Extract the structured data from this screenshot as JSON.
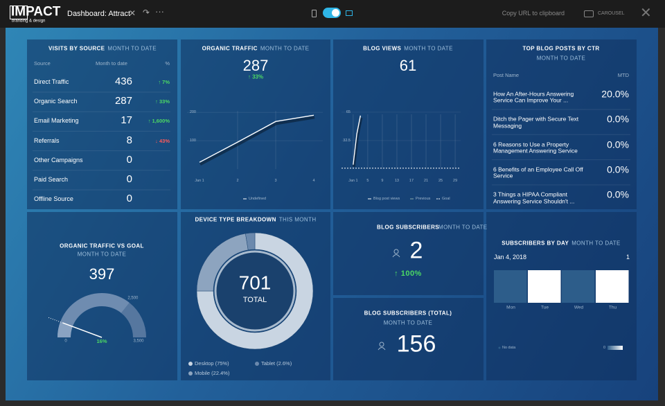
{
  "header": {
    "logo": "IMPACT",
    "logo_tagline": "branding & design",
    "title": "Dashboard: Attract",
    "copy_url": "Copy URL to clipboard",
    "carousel": "CAROUSEL"
  },
  "visits_by_source": {
    "title": "VISITS BY SOURCE",
    "period": "MONTH TO DATE",
    "columns": [
      "Source",
      "Month to date",
      "%"
    ],
    "rows": [
      {
        "source": "Direct Traffic",
        "value": 436,
        "change": "↑ 7%"
      },
      {
        "source": "Organic Search",
        "value": 287,
        "change": "↑ 33%"
      },
      {
        "source": "Email Marketing",
        "value": 17,
        "change": "↑ 1,600%"
      },
      {
        "source": "Referrals",
        "value": 8,
        "change": "↓ 43%"
      },
      {
        "source": "Other Campaigns",
        "value": 0
      },
      {
        "source": "Paid Search",
        "value": 0
      },
      {
        "source": "Offline Source",
        "value": 0
      }
    ]
  },
  "organic_traffic": {
    "title": "ORGANIC TRAFFIC",
    "period": "MONTH TO DATE",
    "value": 287,
    "change": "↑ 33%",
    "chart": {
      "type": "line",
      "categories": [
        "Jan 1",
        "2",
        "3",
        "4"
      ],
      "values": [
        24,
        95,
        168,
        190
      ],
      "ylim": [
        0,
        230
      ],
      "yticks": [
        100,
        200
      ],
      "legend": "Undefined",
      "color": "#ffffff"
    }
  },
  "blog_views": {
    "title": "BLOG VIEWS",
    "period": "MONTH TO DATE",
    "value": 61,
    "chart": {
      "type": "line",
      "x": [
        1,
        2,
        3
      ],
      "values": [
        5,
        40,
        61
      ],
      "xlim": [
        -2.2,
        30.5
      ],
      "xticks": [
        {
          "value": 1,
          "label": "Jan 1"
        },
        5,
        9,
        13,
        17,
        21,
        25,
        29
      ],
      "ylim": [
        0,
        72
      ],
      "yticks": [
        32.5,
        65
      ],
      "goal": 1,
      "legend": [
        "Blog post views",
        "Previous",
        "Goal"
      ],
      "color": "#ffffff"
    }
  },
  "top_posts": {
    "title": "TOP BLOG POSTS BY CTR",
    "period": "MONTH TO DATE",
    "columns": [
      "Post Name",
      "MTD"
    ],
    "rows": [
      {
        "name": "How An After-Hours Answering Service Can Improve Your ...",
        "value": "20.0%"
      },
      {
        "name": "Ditch the Pager with Secure Text Messaging",
        "value": "0.0%"
      },
      {
        "name": "6 Reasons to Use a Property Management Answering Service",
        "value": "0.0%"
      },
      {
        "name": "6 Benefits of an Employee Call Off Service",
        "value": "0.0%"
      },
      {
        "name": "3 Things a HIPAA Compliant Answering Service Shouldn't ...",
        "value": "0.0%"
      }
    ]
  },
  "traffic_vs_goal": {
    "title": "ORGANIC TRAFFIC VS GOAL",
    "period": "MONTH TO DATE",
    "value": 397,
    "percent_label": "16%",
    "range": [
      0,
      3500
    ],
    "goal": 2500,
    "ticks": [
      0,
      {
        "value": 2500,
        "label": "2,500"
      },
      {
        "value": 3500,
        "label": "3,500"
      }
    ]
  },
  "device_breakdown": {
    "title": "DEVICE TYPE BREAKDOWN",
    "period": "THIS MONTH",
    "total": 701,
    "total_label": "TOTAL",
    "chart": {
      "type": "pie",
      "categories": [
        "Desktop",
        "Mobile",
        "Tablet"
      ],
      "values": [
        75,
        22.4,
        2.6
      ],
      "colors": [
        "#c9d5e2",
        "#8da4bf",
        "#6b89ad"
      ],
      "legend": [
        "Desktop (75%)",
        "Mobile (22.4%)",
        "Tablet (2.6%)"
      ]
    }
  },
  "blog_subscribers": {
    "title": "BLOG SUBSCRIBERS",
    "period": "MONTH TO DATE",
    "value": 2,
    "change": "↑ 100%"
  },
  "blog_subscribers_total": {
    "title": "BLOG SUBSCRIBERS (TOTAL)",
    "period": "MONTH TO DATE",
    "value": 156
  },
  "subscribers_by_day": {
    "title": "SUBSCRIBERS BY DAY",
    "period": "MONTH TO DATE",
    "date": "Jan 4, 2018",
    "date_value": 1,
    "chart": {
      "type": "heatmap",
      "categories": [
        "Mon",
        "Tue",
        "Wed",
        "Thu"
      ],
      "values": [
        0,
        1,
        0,
        1
      ],
      "colors": [
        "#2d5d8a",
        "#ffffff"
      ],
      "no_data": "No data",
      "scale_min": 0
    }
  }
}
